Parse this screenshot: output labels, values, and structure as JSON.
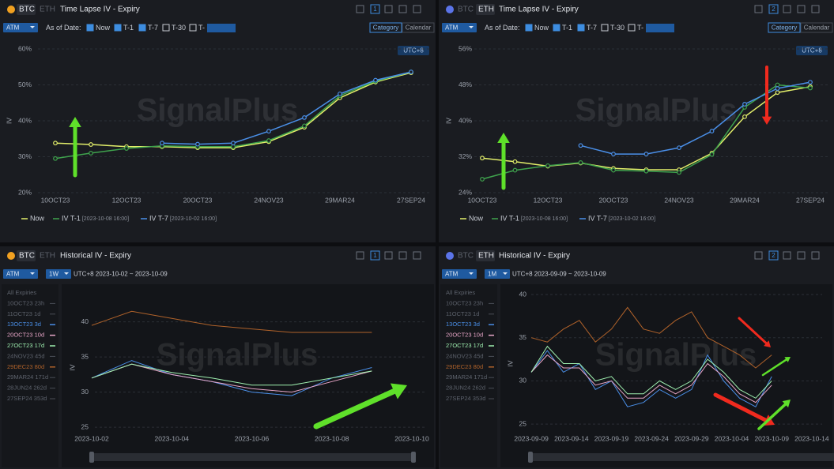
{
  "panels": [
    {
      "coin_tabs": [
        "BTC",
        "ETH"
      ],
      "title": "Time Lapse IV - Expiry",
      "page": "1",
      "selector": "ATM",
      "as_of_label": "As of Date:",
      "checks": [
        "Now",
        "T-1",
        "T-7",
        "T-30",
        "T-"
      ],
      "modes": [
        "Category",
        "Calendar"
      ],
      "timezone": "UTC+8",
      "watermark": "SignalPlus"
    },
    {
      "coin_tabs": [
        "BTC",
        "ETH"
      ],
      "title": "Time Lapse IV - Expiry",
      "page": "2",
      "selector": "ATM",
      "as_of_label": "As of Date:",
      "checks": [
        "Now",
        "T-1",
        "T-7",
        "T-30",
        "T-"
      ],
      "modes": [
        "Category",
        "Calendar"
      ],
      "timezone": "UTC+8",
      "watermark": "SignalPlus"
    },
    {
      "coin_tabs": [
        "BTC",
        "ETH"
      ],
      "title": "Historical IV - Expiry",
      "page": "1",
      "selector": "ATM",
      "period": "1W",
      "range": "UTC+8 2023-10-02 ~ 2023-10-09",
      "watermark": "SignalPlus",
      "expiries": [
        "All Expiries",
        "10OCT23 23h",
        "11OCT23 1d",
        "13OCT23 3d",
        "20OCT23 10d",
        "27OCT23 17d",
        "24NOV23 45d",
        "29DEC23 80d",
        "29MAR24 171d",
        "28JUN24 262d",
        "27SEP24 353d"
      ]
    },
    {
      "coin_tabs": [
        "BTC",
        "ETH"
      ],
      "title": "Historical IV - Expiry",
      "page": "2",
      "selector": "ATM",
      "period": "1M",
      "range": "UTC+8 2023-09-09 ~ 2023-10-09",
      "watermark": "SignalPlus",
      "expiries": [
        "All Expiries",
        "10OCT23 23h",
        "11OCT23 1d",
        "13OCT23 3d",
        "20OCT23 10d",
        "27OCT23 17d",
        "24NOV23 45d",
        "29DEC23 80d",
        "29MAR24 171d",
        "28JUN24 262d",
        "27SEP24 353d"
      ]
    }
  ],
  "chart_data": [
    {
      "type": "line",
      "ylabel": "IV",
      "categories": [
        "10OCT23",
        null,
        "12OCT23",
        null,
        "20OCT23",
        null,
        "24NOV23",
        null,
        "29MAR24",
        null,
        "27SEP24"
      ],
      "ylim": [
        20,
        60
      ],
      "yticks": [
        {
          "value": 20,
          "label": "20%"
        },
        {
          "value": 30,
          "label": "30%"
        },
        {
          "value": 40,
          "label": "40%"
        },
        {
          "value": 50,
          "label": "50%"
        },
        {
          "value": 60,
          "label": "60%"
        }
      ],
      "grid": true,
      "legend": "bottom-left",
      "series": [
        {
          "name": "Now",
          "color": "#e3ef6a",
          "values": [
            33.8,
            33.4,
            32.8,
            32.8,
            32.5,
            32.5,
            34.2,
            38.2,
            46.4,
            50.8,
            53.4
          ]
        },
        {
          "name": "IV T-1",
          "as_of": "[2023-10-08 16:00]",
          "color": "#3fa34d",
          "values": [
            29.5,
            31.0,
            32.3,
            33.0,
            32.8,
            32.8,
            34.5,
            38.6,
            47.0,
            51.0,
            53.6
          ]
        },
        {
          "name": "IV T-7",
          "as_of": "[2023-10-02 16:00]",
          "color": "#4a8fe8",
          "values": [
            null,
            null,
            null,
            33.8,
            33.5,
            33.8,
            37.1,
            40.9,
            47.5,
            51.3,
            53.6
          ]
        }
      ]
    },
    {
      "type": "line",
      "ylabel": "IV",
      "categories": [
        "10OCT23",
        null,
        "12OCT23",
        null,
        "20OCT23",
        null,
        "24NOV23",
        null,
        "29MAR24",
        null,
        "27SEP24"
      ],
      "ylim": [
        24,
        56
      ],
      "yticks": [
        {
          "value": 24,
          "label": "24%"
        },
        {
          "value": 32,
          "label": "32%"
        },
        {
          "value": 40,
          "label": "40%"
        },
        {
          "value": 48,
          "label": "48%"
        },
        {
          "value": 56,
          "label": "56%"
        }
      ],
      "grid": true,
      "legend": "bottom-left",
      "series": [
        {
          "name": "Now",
          "color": "#e3ef6a",
          "values": [
            31.7,
            30.9,
            29.9,
            30.6,
            29.4,
            29.1,
            29.1,
            32.8,
            40.9,
            46.3,
            47.6
          ]
        },
        {
          "name": "IV T-1",
          "as_of": "[2023-10-08 16:00]",
          "color": "#3fa34d",
          "values": [
            27.0,
            29.0,
            30.0,
            30.7,
            29.0,
            28.8,
            28.5,
            32.5,
            43.0,
            48.0,
            47.3
          ]
        },
        {
          "name": "IV T-7",
          "as_of": "[2023-10-02 16:00]",
          "color": "#4a8fe8",
          "values": [
            null,
            null,
            null,
            34.5,
            32.6,
            32.6,
            34.0,
            37.7,
            43.7,
            47.2,
            48.6
          ]
        }
      ]
    },
    {
      "type": "line",
      "ylabel": "IV",
      "x": [
        "2023-10-02",
        "2023-10-03",
        "2023-10-04",
        "2023-10-05",
        "2023-10-06",
        "2023-10-07",
        "2023-10-08",
        "2023-10-09"
      ],
      "xlim": [
        "2023-10-02",
        "2023-10-10"
      ],
      "xticks": [
        "2023-10-02",
        "2023-10-04",
        "2023-10-06",
        "2023-10-08",
        "2023-10-10"
      ],
      "ylim": [
        24,
        43
      ],
      "yticks": [
        25,
        30,
        35,
        40
      ],
      "grid": true,
      "series": [
        {
          "name": "29DEC23 80d",
          "color": "#b0622a",
          "values": [
            39.5,
            41.5,
            40.5,
            39.5,
            39.0,
            38.5,
            38.5,
            38.5
          ]
        },
        {
          "name": "13OCT23 3d",
          "color": "#4a8fe8",
          "values": [
            32.0,
            34.5,
            32.5,
            31.5,
            30.0,
            29.5,
            32.0,
            33.5
          ]
        },
        {
          "name": "20OCT23 10d",
          "color": "#e8a6c8",
          "values": [
            32.0,
            34.0,
            32.5,
            31.5,
            30.5,
            30.0,
            31.5,
            33.0
          ]
        },
        {
          "name": "27OCT23 17d",
          "color": "#9ff0b0",
          "values": [
            32.0,
            34.0,
            32.8,
            32.0,
            31.0,
            31.0,
            32.0,
            33.0
          ]
        }
      ]
    },
    {
      "type": "line",
      "ylabel": "IV",
      "x": [
        "2023-09-09",
        "2023-09-11",
        "2023-09-13",
        "2023-09-15",
        "2023-09-17",
        "2023-09-19",
        "2023-09-21",
        "2023-09-23",
        "2023-09-25",
        "2023-09-27",
        "2023-09-29",
        "2023-10-01",
        "2023-10-03",
        "2023-10-05",
        "2023-10-07",
        "2023-10-09"
      ],
      "xlim": [
        "2023-09-08",
        "2023-10-15"
      ],
      "xticks": [
        "2023-09-09",
        "2023-09-14",
        "2023-09-19",
        "2023-09-24",
        "2023-09-29",
        "2023-10-04",
        "2023-10-09",
        "2023-10-14"
      ],
      "ylim": [
        24,
        40
      ],
      "yticks": [
        25,
        30,
        35,
        40
      ],
      "grid": true,
      "series": [
        {
          "name": "29DEC23 80d",
          "color": "#b0622a",
          "values": [
            35,
            34.5,
            36,
            37,
            34.5,
            36,
            38.5,
            36,
            35.5,
            37,
            38,
            35,
            34,
            33,
            31.5,
            33
          ]
        },
        {
          "name": "13OCT23 3d",
          "color": "#4a8fe8",
          "values": [
            31,
            33.5,
            31,
            32,
            29,
            30,
            27,
            27.5,
            29,
            28,
            29,
            33,
            30,
            28,
            27,
            30.5
          ]
        },
        {
          "name": "20OCT23 10d",
          "color": "#e8a6c8",
          "values": [
            31,
            33,
            31.5,
            31.5,
            29.5,
            30,
            28,
            28,
            29.5,
            28.5,
            29.5,
            32,
            30.5,
            28.5,
            27.5,
            29.5
          ]
        },
        {
          "name": "27OCT23 17d",
          "color": "#9ff0b0",
          "values": [
            31,
            34,
            32,
            32,
            30,
            30.5,
            28.5,
            28.5,
            30,
            29,
            30,
            32.5,
            31,
            29,
            28,
            30
          ]
        }
      ]
    }
  ]
}
